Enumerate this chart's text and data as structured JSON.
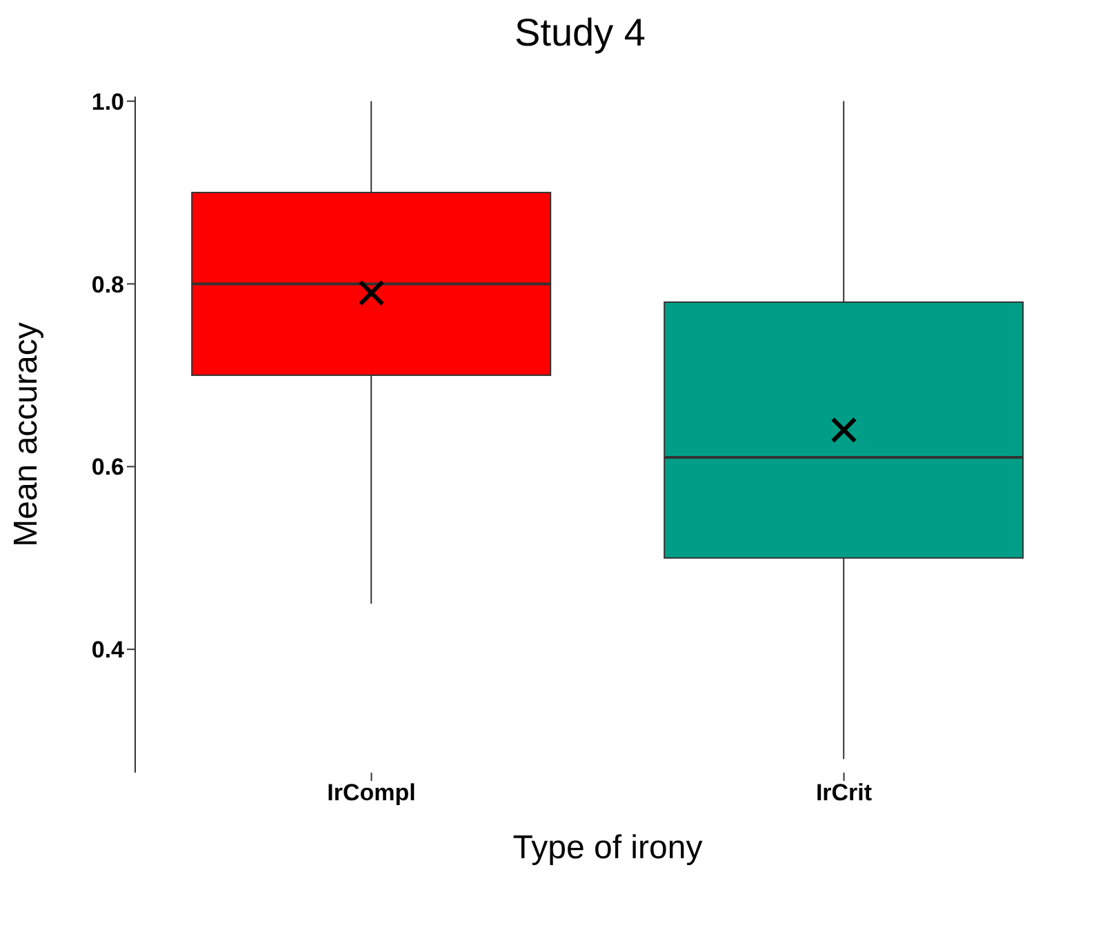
{
  "chart_data": {
    "type": "box",
    "title": "Study 4",
    "xlabel": "Type of irony",
    "ylabel": "Mean accuracy",
    "categories": [
      "IrCompl",
      "IrCrit"
    ],
    "colors": [
      "#ff0000",
      "#009e87"
    ],
    "boxes": [
      {
        "low": 0.45,
        "q1": 0.7,
        "median": 0.8,
        "q3": 0.9,
        "high": 1.0,
        "mean": 0.79
      },
      {
        "low": 0.28,
        "q1": 0.5,
        "median": 0.61,
        "q3": 0.78,
        "high": 1.0,
        "mean": 0.64
      }
    ],
    "marker": "cross",
    "ylim": [
      0.265,
      1.005
    ],
    "yticks": [
      0.4,
      0.6,
      0.8,
      {
        "value": 1,
        "label": "1.0"
      }
    ]
  }
}
